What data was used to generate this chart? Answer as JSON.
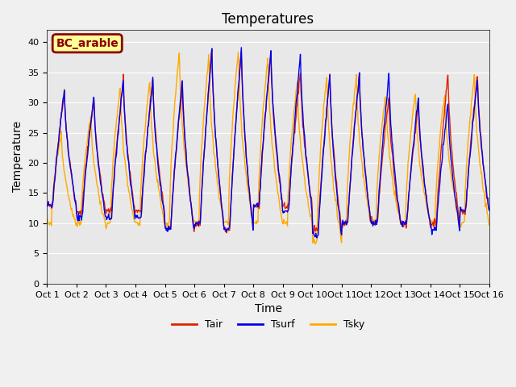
{
  "title": "Temperatures",
  "xlabel": "Time",
  "ylabel": "Temperature",
  "ylim": [
    0,
    42
  ],
  "yticks": [
    0,
    5,
    10,
    15,
    20,
    25,
    30,
    35,
    40
  ],
  "n_days": 15,
  "line_colors": {
    "Tair": "#dd2200",
    "Tsurf": "#0000ee",
    "Tsky": "#ffaa00"
  },
  "line_width": 1.0,
  "bg_color": "#e8e8e8",
  "legend_label": "BC_arable",
  "legend_box_color": "#ffff99",
  "legend_box_edge_color": "#8b0000",
  "grid_color": "#ffffff",
  "xtick_labels": [
    "Oct 1",
    "Oct 2",
    "Oct 3",
    "Oct 4",
    "Oct 5",
    "Oct 6",
    "Oct 7",
    "Oct 8",
    "Oct 9",
    "Oct 10",
    "Oct 11",
    "Oct 12",
    "Oct 13",
    "Oct 14",
    "Oct 15",
    "Oct 16"
  ],
  "title_fontsize": 12,
  "axis_label_fontsize": 10,
  "tick_fontsize": 8,
  "legend_fontsize": 9,
  "figsize": [
    6.4,
    4.8
  ],
  "dpi": 100
}
